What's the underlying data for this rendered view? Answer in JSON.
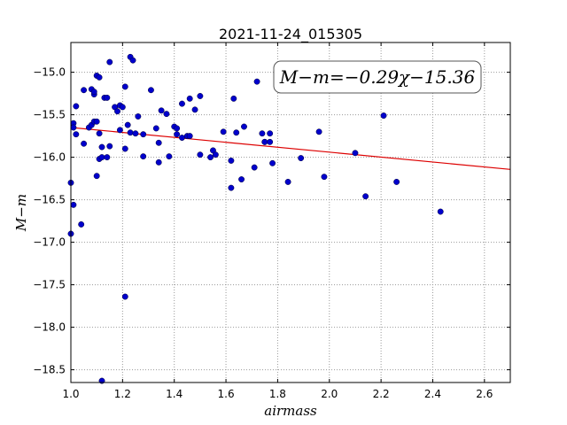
{
  "chart_data": {
    "type": "scatter",
    "title": "2021-11-24_015305",
    "xlabel": "airmass",
    "ylabel": "M−m",
    "xlim": [
      1.0,
      2.7
    ],
    "ylim": [
      -18.65,
      -14.65
    ],
    "x_ticks": [
      1.0,
      1.2,
      1.4,
      1.6,
      1.8,
      2.0,
      2.2,
      2.4,
      2.6
    ],
    "x_tick_labels": [
      "1.0",
      "1.2",
      "1.4",
      "1.6",
      "1.8",
      "2.0",
      "2.2",
      "2.4",
      "2.6"
    ],
    "y_ticks": [
      -15.0,
      -15.5,
      -16.0,
      -16.5,
      -17.0,
      -17.5,
      -18.0,
      -18.5
    ],
    "y_tick_labels": [
      "−15.0",
      "−15.5",
      "−16.0",
      "−16.5",
      "−17.0",
      "−17.5",
      "−18.0",
      "−18.5"
    ],
    "grid": true,
    "fit_label": "M−m=−0.29χ−15.36",
    "fit": {
      "slope": -0.29,
      "intercept": -15.36
    },
    "colors": {
      "points": "#0000cc",
      "fit_line": "#dd0000",
      "grid": "#999999"
    },
    "points": [
      [
        1.0,
        -16.3
      ],
      [
        1.0,
        -16.9
      ],
      [
        1.01,
        -16.56
      ],
      [
        1.01,
        -15.6
      ],
      [
        1.01,
        -15.65
      ],
      [
        1.02,
        -15.4
      ],
      [
        1.02,
        -15.73
      ],
      [
        1.04,
        -16.79
      ],
      [
        1.05,
        -15.84
      ],
      [
        1.05,
        -15.21
      ],
      [
        1.07,
        -15.65
      ],
      [
        1.08,
        -15.2
      ],
      [
        1.08,
        -15.62
      ],
      [
        1.09,
        -15.26
      ],
      [
        1.09,
        -15.23
      ],
      [
        1.09,
        -15.58
      ],
      [
        1.1,
        -15.04
      ],
      [
        1.1,
        -16.22
      ],
      [
        1.1,
        -15.58
      ],
      [
        1.11,
        -15.06
      ],
      [
        1.11,
        -15.72
      ],
      [
        1.11,
        -16.02
      ],
      [
        1.12,
        -15.88
      ],
      [
        1.12,
        -16.0
      ],
      [
        1.12,
        -18.63
      ],
      [
        1.13,
        -15.3
      ],
      [
        1.14,
        -15.3
      ],
      [
        1.14,
        -16.0
      ],
      [
        1.15,
        -15.87
      ],
      [
        1.15,
        -14.88
      ],
      [
        1.17,
        -15.41
      ],
      [
        1.18,
        -15.46
      ],
      [
        1.19,
        -15.68
      ],
      [
        1.19,
        -15.39
      ],
      [
        1.2,
        -15.41
      ],
      [
        1.21,
        -15.17
      ],
      [
        1.21,
        -15.9
      ],
      [
        1.21,
        -17.64
      ],
      [
        1.22,
        -15.62
      ],
      [
        1.23,
        -15.71
      ],
      [
        1.23,
        -14.82
      ],
      [
        1.24,
        -14.86
      ],
      [
        1.25,
        -15.72
      ],
      [
        1.26,
        -15.52
      ],
      [
        1.28,
        -15.99
      ],
      [
        1.28,
        -15.73
      ],
      [
        1.31,
        -15.21
      ],
      [
        1.33,
        -15.66
      ],
      [
        1.34,
        -15.83
      ],
      [
        1.34,
        -16.06
      ],
      [
        1.35,
        -15.45
      ],
      [
        1.37,
        -15.49
      ],
      [
        1.38,
        -15.99
      ],
      [
        1.4,
        -15.64
      ],
      [
        1.41,
        -15.73
      ],
      [
        1.41,
        -15.66
      ],
      [
        1.43,
        -15.37
      ],
      [
        1.43,
        -15.77
      ],
      [
        1.45,
        -15.75
      ],
      [
        1.46,
        -15.75
      ],
      [
        1.46,
        -15.31
      ],
      [
        1.48,
        -15.44
      ],
      [
        1.5,
        -15.97
      ],
      [
        1.5,
        -15.28
      ],
      [
        1.54,
        -16.0
      ],
      [
        1.55,
        -15.92
      ],
      [
        1.56,
        -15.97
      ],
      [
        1.59,
        -15.7
      ],
      [
        1.62,
        -16.04
      ],
      [
        1.62,
        -16.36
      ],
      [
        1.63,
        -15.31
      ],
      [
        1.64,
        -15.71
      ],
      [
        1.66,
        -16.26
      ],
      [
        1.67,
        -15.64
      ],
      [
        1.71,
        -16.12
      ],
      [
        1.72,
        -15.11
      ],
      [
        1.74,
        -15.72
      ],
      [
        1.75,
        -15.82
      ],
      [
        1.75,
        -15.82
      ],
      [
        1.77,
        -15.82
      ],
      [
        1.77,
        -15.72
      ],
      [
        1.78,
        -16.07
      ],
      [
        1.84,
        -16.29
      ],
      [
        1.89,
        -16.01
      ],
      [
        1.96,
        -15.7
      ],
      [
        1.98,
        -16.23
      ],
      [
        2.1,
        -15.95
      ],
      [
        2.14,
        -16.46
      ],
      [
        2.21,
        -15.51
      ],
      [
        2.26,
        -16.29
      ],
      [
        2.43,
        -16.64
      ]
    ]
  }
}
